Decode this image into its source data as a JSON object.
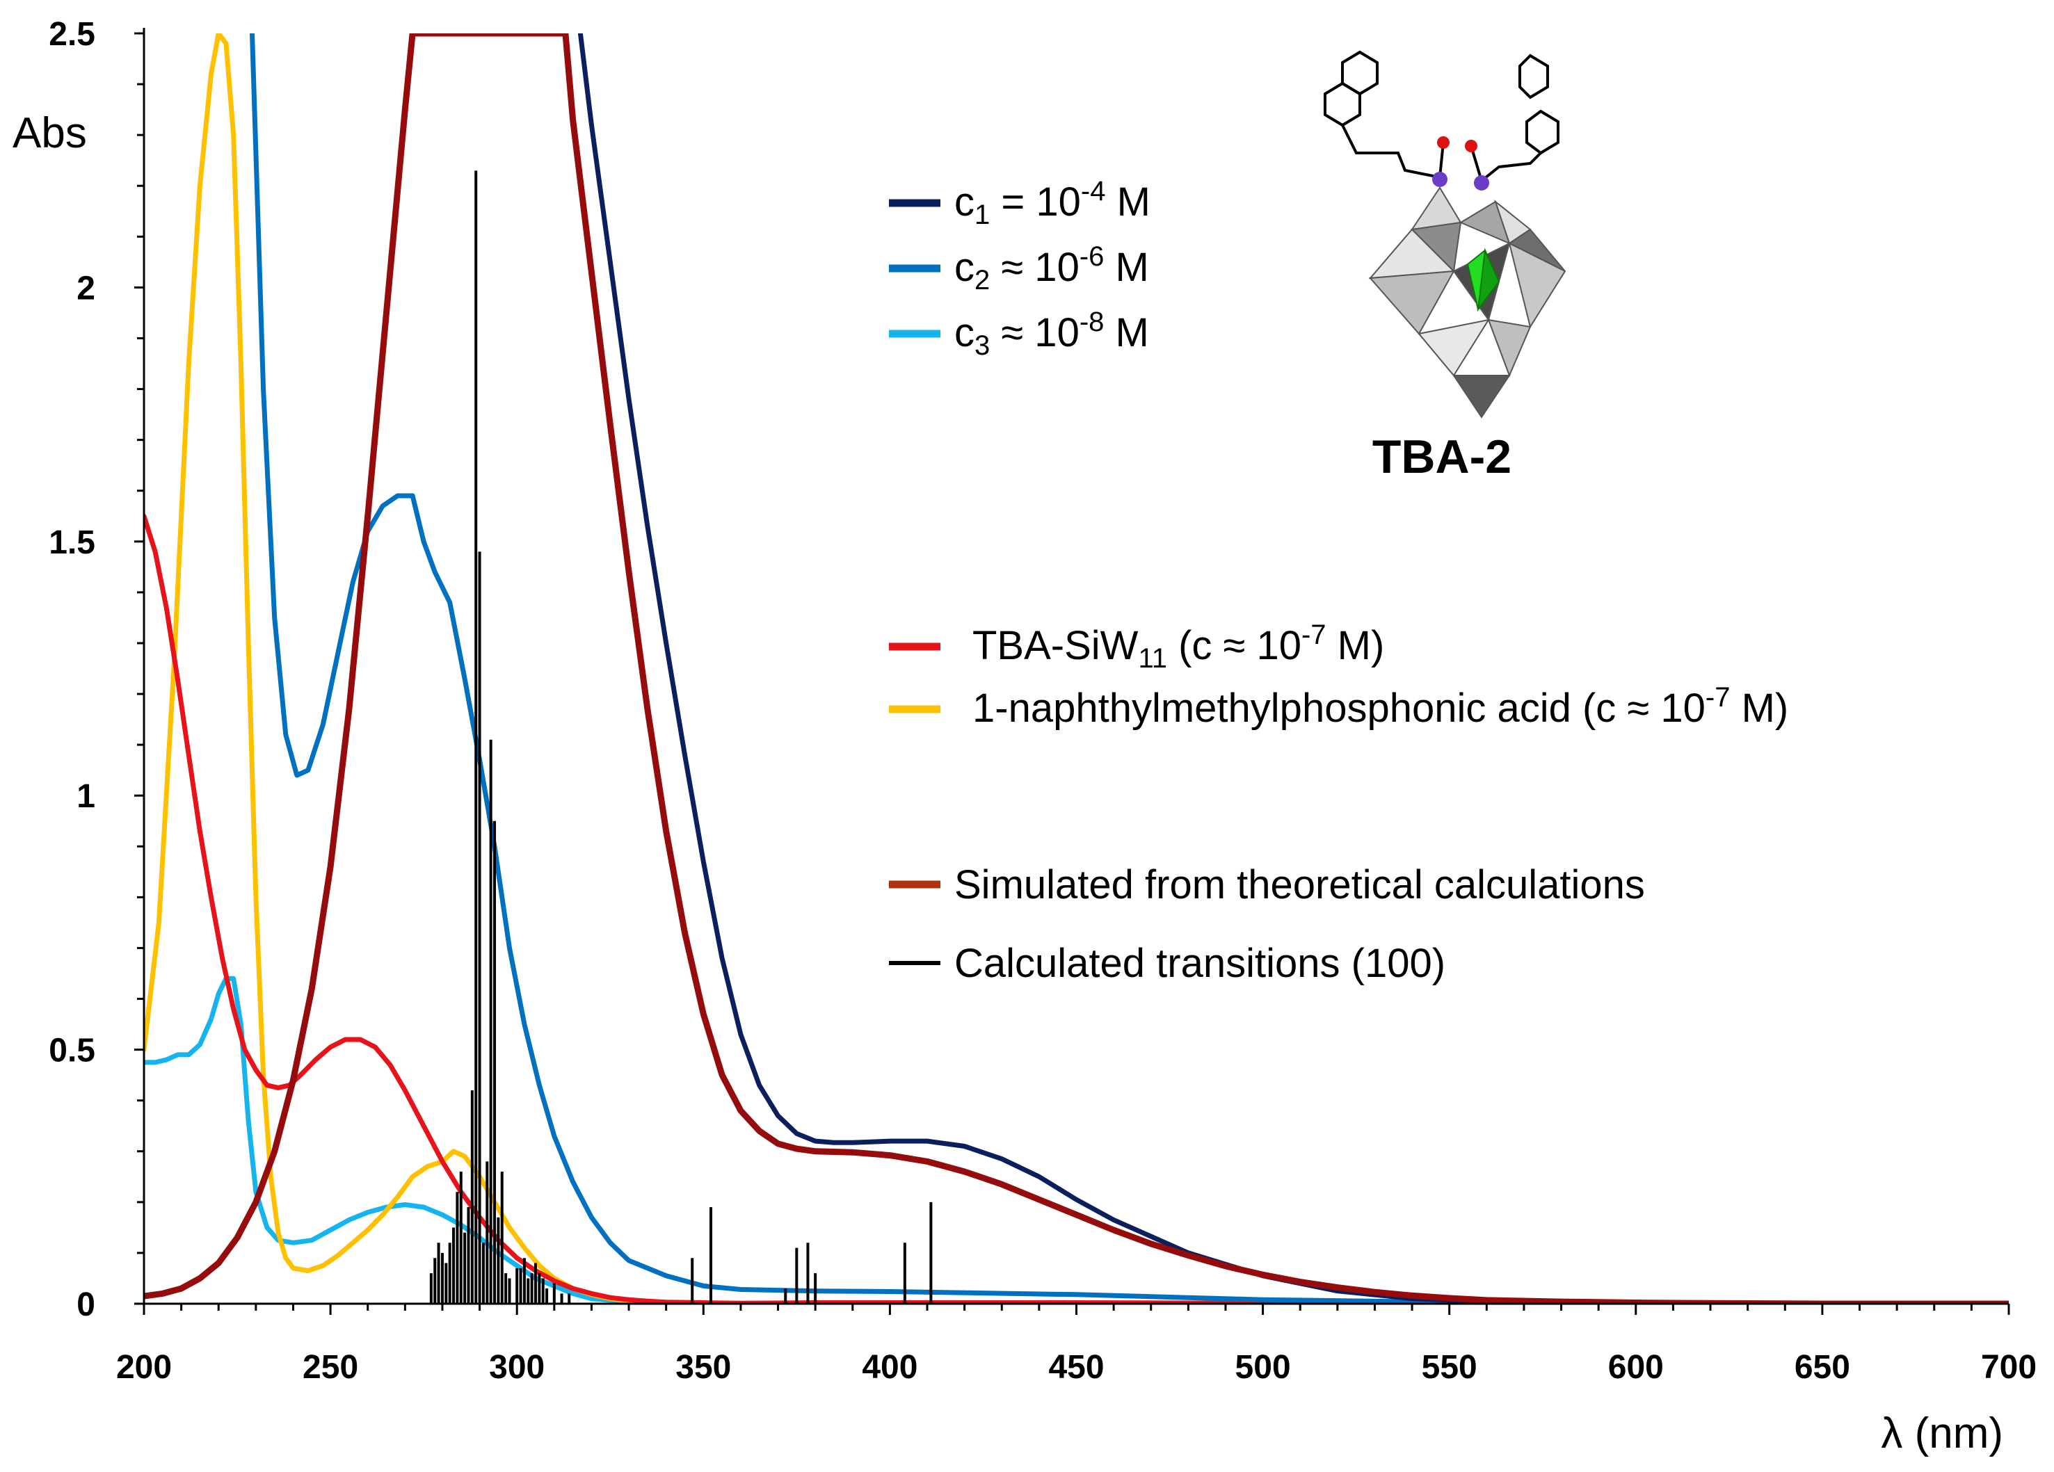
{
  "chart_data": {
    "type": "line",
    "title": "",
    "xlabel": "λ (nm)",
    "ylabel": "Abs",
    "xlim": [
      200,
      700
    ],
    "ylim": [
      0,
      2.5
    ],
    "x_ticks": [
      200,
      250,
      300,
      350,
      400,
      450,
      500,
      550,
      600,
      650,
      700
    ],
    "y_ticks": [
      {
        "value": 0,
        "label": "0"
      },
      {
        "value": 0.5,
        "label": "0.5"
      },
      {
        "value": 1,
        "label": "1"
      },
      {
        "value": 1.5,
        "label": "1.5"
      },
      {
        "value": 2,
        "label": "2"
      },
      {
        "value": 2.5,
        "label": "2.5"
      }
    ],
    "grid": false,
    "colors": {
      "c1": "#0b1f5e",
      "c2": "#0070c0",
      "c3": "#16b4ef",
      "tba_siw11": "#e8131a",
      "naphthyl": "#ffc000",
      "simulated": "#960b0b",
      "simulated_legend": "#b03010",
      "transitions": "#000000"
    },
    "series": [
      {
        "name": "c1 = 10^-4 M",
        "key": "c1",
        "x": [
          317,
          320,
          325,
          330,
          335,
          340,
          345,
          350,
          355,
          360,
          365,
          370,
          375,
          380,
          385,
          390,
          400,
          410,
          420,
          430,
          440,
          450,
          460,
          480,
          500,
          520,
          540,
          560,
          580,
          600,
          650,
          700
        ],
        "y": [
          2.5,
          2.32,
          2.05,
          1.78,
          1.53,
          1.3,
          1.08,
          0.87,
          0.68,
          0.53,
          0.43,
          0.37,
          0.335,
          0.32,
          0.317,
          0.317,
          0.32,
          0.32,
          0.31,
          0.285,
          0.25,
          0.205,
          0.165,
          0.1,
          0.055,
          0.025,
          0.01,
          0.004,
          0.002,
          0.001,
          0,
          0
        ]
      },
      {
        "name": "c2 ≈ 10^-6 M",
        "key": "c2",
        "x": [
          229,
          232,
          235,
          238,
          241,
          244,
          248,
          252,
          256,
          260,
          264,
          268,
          272,
          275,
          278,
          282,
          286,
          290,
          294,
          298,
          302,
          306,
          310,
          315,
          320,
          325,
          330,
          340,
          350,
          360,
          380,
          400,
          450,
          500,
          550,
          600,
          700
        ],
        "y": [
          2.5,
          1.8,
          1.35,
          1.12,
          1.04,
          1.05,
          1.14,
          1.28,
          1.42,
          1.52,
          1.57,
          1.59,
          1.59,
          1.5,
          1.44,
          1.38,
          1.23,
          1.07,
          0.9,
          0.7,
          0.55,
          0.43,
          0.33,
          0.24,
          0.17,
          0.12,
          0.085,
          0.055,
          0.035,
          0.028,
          0.025,
          0.024,
          0.018,
          0.008,
          0.003,
          0.001,
          0
        ]
      },
      {
        "name": "c3 ≈ 10^-8 M",
        "key": "c3",
        "x": [
          200,
          203,
          206,
          209,
          212,
          215,
          218,
          220,
          222,
          224,
          226,
          228,
          230,
          233,
          236,
          240,
          245,
          250,
          255,
          260,
          265,
          270,
          275,
          280,
          285,
          290,
          295,
          300,
          305,
          310,
          315,
          320,
          330,
          340,
          350,
          700
        ],
        "y": [
          0.475,
          0.475,
          0.48,
          0.49,
          0.49,
          0.51,
          0.56,
          0.61,
          0.64,
          0.64,
          0.55,
          0.36,
          0.22,
          0.15,
          0.125,
          0.12,
          0.125,
          0.145,
          0.165,
          0.18,
          0.19,
          0.195,
          0.19,
          0.175,
          0.155,
          0.13,
          0.1,
          0.075,
          0.05,
          0.035,
          0.02,
          0.01,
          0.004,
          0.001,
          0,
          0
        ]
      },
      {
        "name": "TBA-SiW11 (c ≈ 10^-7 M)",
        "key": "tba_siw11",
        "x": [
          200,
          203,
          206,
          209,
          212,
          215,
          218,
          221,
          224,
          227,
          230,
          233,
          236,
          239,
          242,
          246,
          250,
          254,
          258,
          262,
          266,
          270,
          275,
          280,
          285,
          290,
          295,
          300,
          305,
          310,
          315,
          320,
          325,
          330,
          335,
          340,
          350,
          360,
          380,
          400,
          450,
          500,
          550,
          600,
          700
        ],
        "y": [
          1.55,
          1.48,
          1.37,
          1.23,
          1.08,
          0.93,
          0.8,
          0.68,
          0.58,
          0.5,
          0.46,
          0.43,
          0.425,
          0.43,
          0.45,
          0.48,
          0.505,
          0.52,
          0.52,
          0.505,
          0.47,
          0.42,
          0.35,
          0.28,
          0.22,
          0.17,
          0.125,
          0.09,
          0.065,
          0.045,
          0.03,
          0.02,
          0.012,
          0.008,
          0.005,
          0.003,
          0.002,
          0.001,
          0.002,
          0.002,
          0.002,
          0.001,
          0.001,
          0,
          0
        ]
      },
      {
        "name": "1-naphthylmethylphosphonic acid (c ≈ 10^-7 M)",
        "key": "naphthyl",
        "x": [
          200,
          204,
          208,
          212,
          215,
          218,
          220,
          222,
          224,
          226,
          228,
          230,
          232,
          234,
          236,
          238,
          240,
          244,
          248,
          252,
          256,
          260,
          264,
          268,
          272,
          276,
          280,
          283,
          286,
          290,
          294,
          298,
          302,
          306,
          310,
          315,
          320,
          325,
          330,
          340,
          350,
          700
        ],
        "y": [
          0.5,
          0.75,
          1.25,
          1.85,
          2.2,
          2.42,
          2.5,
          2.48,
          2.3,
          1.85,
          1.3,
          0.8,
          0.45,
          0.25,
          0.14,
          0.09,
          0.07,
          0.065,
          0.075,
          0.095,
          0.12,
          0.145,
          0.175,
          0.21,
          0.25,
          0.27,
          0.28,
          0.3,
          0.29,
          0.25,
          0.2,
          0.15,
          0.11,
          0.075,
          0.05,
          0.03,
          0.018,
          0.01,
          0.005,
          0.002,
          0,
          0
        ]
      },
      {
        "name": "Simulated from theoretical calculations",
        "key": "simulated",
        "x": [
          200,
          205,
          210,
          215,
          220,
          225,
          230,
          235,
          240,
          245,
          250,
          255,
          260,
          265,
          270,
          272,
          313,
          315,
          320,
          325,
          330,
          335,
          340,
          345,
          350,
          355,
          360,
          365,
          370,
          375,
          380,
          390,
          400,
          410,
          420,
          430,
          440,
          450,
          460,
          470,
          480,
          490,
          500,
          510,
          520,
          530,
          540,
          550,
          560,
          580,
          600,
          620,
          650,
          700
        ],
        "y": [
          0.015,
          0.02,
          0.03,
          0.05,
          0.08,
          0.13,
          0.2,
          0.3,
          0.44,
          0.62,
          0.86,
          1.17,
          1.55,
          1.95,
          2.35,
          2.5,
          2.5,
          2.33,
          2.03,
          1.73,
          1.44,
          1.17,
          0.93,
          0.73,
          0.57,
          0.45,
          0.38,
          0.34,
          0.315,
          0.305,
          0.3,
          0.298,
          0.292,
          0.28,
          0.26,
          0.235,
          0.205,
          0.175,
          0.145,
          0.118,
          0.095,
          0.074,
          0.057,
          0.043,
          0.032,
          0.023,
          0.016,
          0.011,
          0.007,
          0.004,
          0.002,
          0.001,
          0,
          0
        ]
      }
    ],
    "transitions": {
      "name": "Calculated transitions (100)",
      "x": [
        277,
        278,
        279,
        280,
        281,
        282,
        283,
        284,
        285,
        286,
        287,
        288,
        289,
        290,
        291,
        292,
        293,
        294,
        295,
        296,
        297,
        298,
        300,
        301,
        302,
        303,
        304,
        305,
        306,
        307,
        308,
        310,
        312,
        314,
        347,
        352,
        372,
        375,
        378,
        380,
        404,
        411
      ],
      "y": [
        0.06,
        0.09,
        0.12,
        0.1,
        0.08,
        0.12,
        0.15,
        0.22,
        0.26,
        0.14,
        0.19,
        0.42,
        2.23,
        1.48,
        0.12,
        0.28,
        1.11,
        0.95,
        0.17,
        0.26,
        0.06,
        0.05,
        0.07,
        0.07,
        0.09,
        0.05,
        0.06,
        0.08,
        0.06,
        0.05,
        0.03,
        0.04,
        0.02,
        0.02,
        0.09,
        0.19,
        0.03,
        0.11,
        0.12,
        0.06,
        0.12,
        0.2
      ]
    },
    "legend": {
      "group1": [
        {
          "key": "c1",
          "label_parts": [
            "c",
            "1",
            " = 10",
            "-4",
            " M"
          ]
        },
        {
          "key": "c2",
          "label_parts": [
            "c",
            "2",
            " ≈ 10",
            "-6",
            " M"
          ]
        },
        {
          "key": "c3",
          "label_parts": [
            "c",
            "3",
            " ≈ 10",
            "-8",
            " M"
          ]
        }
      ],
      "group2": [
        {
          "key": "tba_siw11",
          "label_parts": [
            "TBA-SiW",
            "11",
            "  (c ≈ 10",
            "-7",
            " M)"
          ]
        },
        {
          "key": "naphthyl",
          "label_parts": [
            "1-naphthylmethylphosphonic acid (c ≈ 10",
            "",
            "",
            "-7",
            " M)"
          ]
        }
      ],
      "group3": [
        {
          "key": "simulated_legend",
          "label": "Simulated from theoretical calculations"
        },
        {
          "key": "transitions",
          "label": "Calculated transitions (100)"
        }
      ]
    },
    "inset": {
      "label": "TBA-2"
    }
  }
}
